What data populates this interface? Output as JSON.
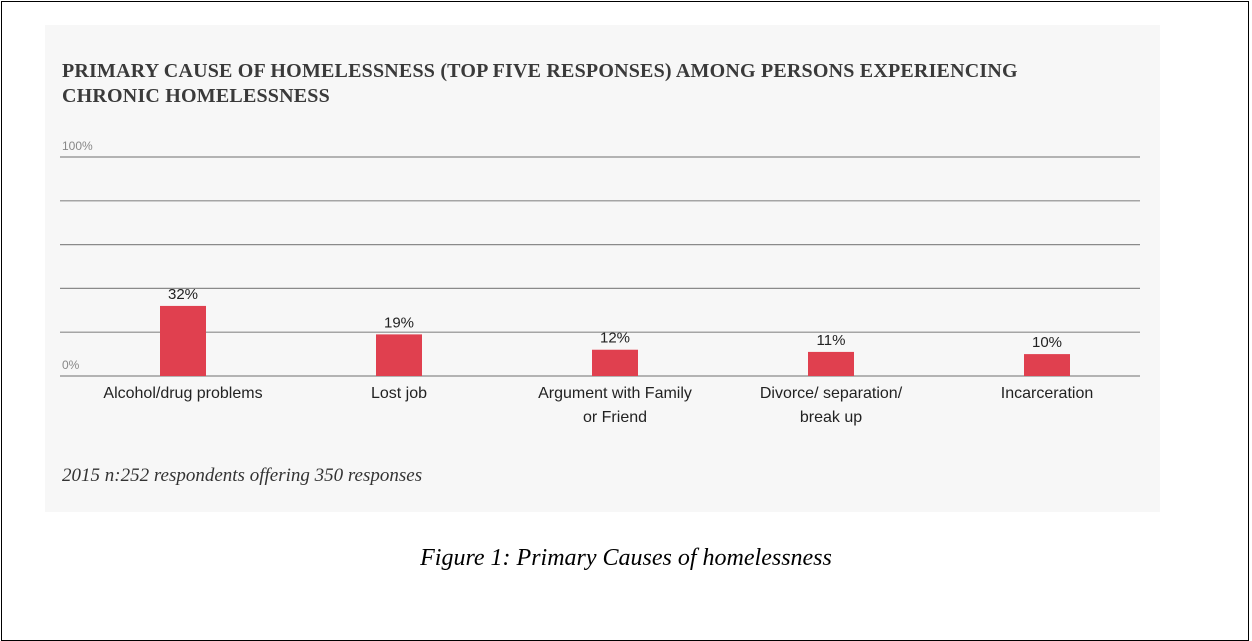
{
  "chart_data": {
    "type": "bar",
    "title": "PRIMARY CAUSE OF HOMELESSNESS (TOP FIVE RESPONSES) AMONG PERSONS EXPERIENCING CHRONIC HOMELESSNESS",
    "categories": [
      "Alcohol/drug problems",
      "Lost job",
      "Argument with Family or Friend",
      "Divorce/ separation/ break up",
      "Incarceration"
    ],
    "values": [
      32,
      19,
      12,
      11,
      10
    ],
    "value_labels": [
      "32%",
      "19%",
      "12%",
      "11%",
      "10%"
    ],
    "color": "#e0404f",
    "ylim": [
      0,
      100
    ],
    "yticks": [
      {
        "value": 0,
        "label": "0%"
      },
      {
        "value": 20
      },
      {
        "value": 40
      },
      {
        "value": 60
      },
      {
        "value": 80
      },
      {
        "value": 100,
        "label": "100%"
      }
    ],
    "grid": true,
    "note": "2015 n:252 respondents offering 350 responses"
  },
  "caption": "Figure 1:  Primary Causes of homelessness"
}
